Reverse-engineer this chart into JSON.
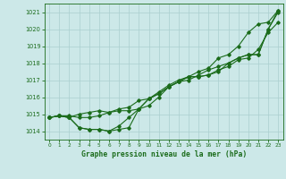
{
  "xlabel": "Graphe pression niveau de la mer (hPa)",
  "xlim": [
    -0.5,
    23.5
  ],
  "ylim": [
    1013.5,
    1021.5
  ],
  "yticks": [
    1014,
    1015,
    1016,
    1017,
    1018,
    1019,
    1020,
    1021
  ],
  "xticks": [
    0,
    1,
    2,
    3,
    4,
    5,
    6,
    7,
    8,
    9,
    10,
    11,
    12,
    13,
    14,
    15,
    16,
    17,
    18,
    19,
    20,
    21,
    22,
    23
  ],
  "bg_color": "#cce8e8",
  "grid_color": "#aacfcf",
  "line_color": "#1a6b1a",
  "line1": [
    1014.8,
    1014.9,
    1014.9,
    1014.8,
    1014.8,
    1014.9,
    1015.1,
    1015.2,
    1015.2,
    1015.3,
    1015.9,
    1016.3,
    1016.7,
    1017.0,
    1017.2,
    1017.5,
    1017.7,
    1018.3,
    1018.5,
    1019.0,
    1019.8,
    1020.3,
    1020.4,
    1021.1
  ],
  "line2": [
    1014.8,
    1014.9,
    1014.8,
    1014.2,
    1014.1,
    1014.1,
    1014.0,
    1014.1,
    1014.2,
    1015.3,
    1015.9,
    1016.2,
    1016.6,
    1016.9,
    1017.2,
    1017.2,
    1017.3,
    1017.6,
    1017.8,
    1018.2,
    1018.3,
    1018.8,
    1019.8,
    1020.4
  ],
  "line3": [
    1014.8,
    1014.9,
    1014.8,
    1014.2,
    1014.1,
    1014.1,
    1014.0,
    1014.3,
    1014.8,
    1015.3,
    1015.5,
    1016.0,
    1016.6,
    1016.9,
    1017.2,
    1017.2,
    1017.3,
    1017.5,
    1018.0,
    1018.3,
    1018.5,
    1018.5,
    1020.0,
    1021.1
  ],
  "line4": [
    1014.8,
    1014.9,
    1014.8,
    1015.0,
    1015.1,
    1015.2,
    1015.1,
    1015.3,
    1015.4,
    1015.8,
    1015.9,
    1016.2,
    1016.6,
    1016.9,
    1017.0,
    1017.3,
    1017.6,
    1017.8,
    1018.0,
    1018.3,
    1018.5,
    1018.5,
    1020.0,
    1021.0
  ]
}
